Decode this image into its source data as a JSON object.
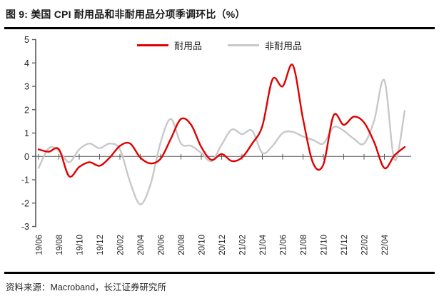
{
  "figure": {
    "title": "图 9: 美国 CPI 耐用品和非耐用品分项季调环比（%）"
  },
  "chart_data": {
    "type": "line",
    "title": "美国 CPI 耐用品和非耐用品分项季调环比（%）",
    "unit": "%",
    "x": [
      "19/06",
      "19/07",
      "19/08",
      "19/09",
      "19/10",
      "19/11",
      "19/12",
      "20/01",
      "20/02",
      "20/03",
      "20/04",
      "20/05",
      "20/06",
      "20/07",
      "20/08",
      "20/09",
      "20/10",
      "20/11",
      "20/12",
      "21/01",
      "21/02",
      "21/03",
      "21/04",
      "21/05",
      "21/06",
      "21/07",
      "21/08",
      "21/09",
      "21/10",
      "21/11",
      "21/12",
      "22/01",
      "22/02",
      "22/03",
      "22/04",
      "22/05",
      "22/06"
    ],
    "series": [
      {
        "name": "耐用品",
        "color": "#E00000",
        "values": [
          0.3,
          0.2,
          0.3,
          -0.85,
          -0.45,
          -0.25,
          -0.4,
          -0.05,
          0.45,
          0.55,
          -0.05,
          -0.3,
          -0.1,
          0.75,
          1.6,
          1.35,
          0.4,
          -0.15,
          0.1,
          -0.2,
          -0.05,
          0.55,
          1.3,
          3.3,
          3.0,
          3.9,
          1.6,
          -0.3,
          -0.35,
          1.75,
          1.35,
          1.7,
          1.45,
          0.6,
          -0.5,
          0.05,
          0.4
        ]
      },
      {
        "name": "非耐用品",
        "color": "#C8C8C8",
        "values": [
          -0.5,
          0.35,
          0.25,
          -0.25,
          0.3,
          0.55,
          0.35,
          0.55,
          0.3,
          -1.1,
          -2.05,
          -1.2,
          0.6,
          1.6,
          0.55,
          0.45,
          0.15,
          -0.2,
          0.5,
          1.15,
          0.95,
          1.1,
          0.15,
          0.45,
          1.0,
          1.05,
          0.85,
          0.7,
          0.55,
          1.25,
          1.1,
          0.75,
          0.55,
          1.55,
          3.25,
          -0.15,
          1.95
        ]
      }
    ],
    "ylim": [
      -3,
      5
    ],
    "yticks": [
      5,
      4,
      3,
      2,
      1,
      0,
      -1,
      -2,
      -3
    ],
    "xtick_labels": [
      "19/06",
      "19/08",
      "19/10",
      "19/12",
      "20/02",
      "20/04",
      "20/06",
      "20/08",
      "20/10",
      "20/12",
      "21/02",
      "21/04",
      "21/06",
      "21/08",
      "21/10",
      "21/12",
      "22/02",
      "22/04"
    ],
    "legend": [
      "耐用品",
      "非耐用品"
    ],
    "legend_position": "top-center",
    "grid": "zero-baseline-only",
    "axis_color": "#595959",
    "label_color": "#262626"
  },
  "source": {
    "text": "资料来源：Macroband，长江证券研究所"
  }
}
